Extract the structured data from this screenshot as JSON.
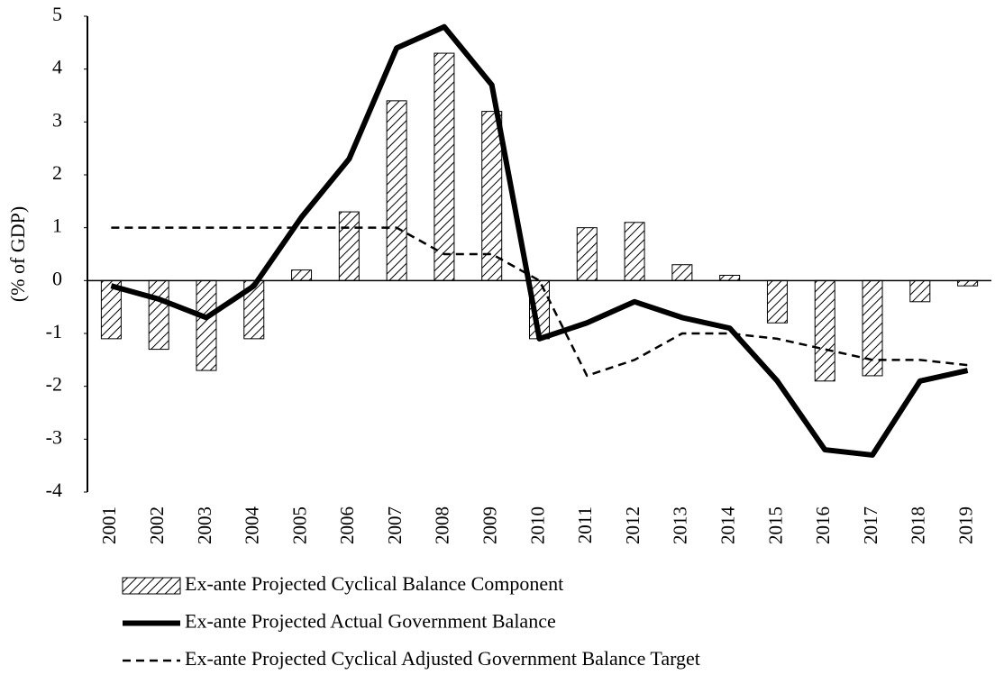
{
  "chart_data": {
    "type": "bar",
    "y_label": "(% of GDP)",
    "categories": [
      "2001",
      "2002",
      "2003",
      "2004",
      "2005",
      "2006",
      "2007",
      "2008",
      "2009",
      "2010",
      "2011",
      "2012",
      "2013",
      "2014",
      "2015",
      "2016",
      "2017",
      "2018",
      "2019"
    ],
    "series": [
      {
        "name": "Ex-ante Projected Cyclical Balance Component",
        "type": "bar",
        "color": "#000000",
        "values": [
          -1.1,
          -1.3,
          -1.7,
          -1.1,
          0.2,
          1.3,
          3.4,
          4.3,
          3.2,
          -1.1,
          1.0,
          1.1,
          0.3,
          0.1,
          -0.8,
          -1.9,
          -1.8,
          -0.4,
          -0.1
        ]
      },
      {
        "name": "Ex-ante Projected Actual Government Balance",
        "type": "line",
        "color": "#000000",
        "values": [
          -0.1,
          -0.35,
          -0.7,
          -0.1,
          1.2,
          2.3,
          4.4,
          4.8,
          3.7,
          -1.1,
          -0.8,
          -0.4,
          -0.7,
          -0.9,
          -1.9,
          -3.2,
          -3.3,
          -1.9,
          -1.7
        ]
      },
      {
        "name": "Ex-ante Projected Cyclical Adjusted Government Balance Target",
        "type": "line",
        "dashed": true,
        "color": "#000000",
        "values": [
          1,
          1,
          1,
          1,
          1,
          1,
          1,
          0.5,
          0.5,
          0,
          -1.8,
          -1.5,
          -1.0,
          -1.0,
          -1.1,
          -1.3,
          -1.5,
          -1.5,
          -1.6
        ]
      }
    ],
    "ylim": [
      -4,
      5
    ],
    "yticks": [
      -4,
      -3,
      -2,
      -1,
      0,
      1,
      2,
      3,
      4,
      5
    ],
    "grid": false
  }
}
